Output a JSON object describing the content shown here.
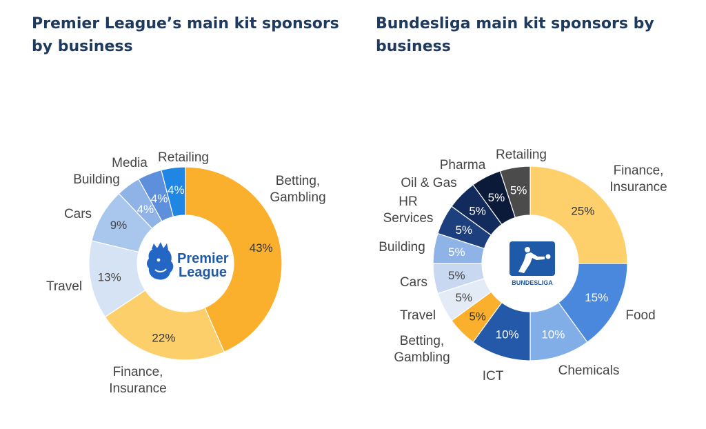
{
  "titles": {
    "premier_league": "Premier League’s main kit sponsors by business",
    "bundesliga": "Bundesliga main kit sponsors by business"
  },
  "logos": {
    "premier_league": {
      "line1": "Premier",
      "line2": "League",
      "icon": "lion-crest-icon"
    },
    "bundesliga": {
      "text": "BUNDESLIGA",
      "icon": "bundesliga-player-icon"
    }
  },
  "chart_data": [
    {
      "type": "pie",
      "style": "donut",
      "title": "Premier League’s main kit sponsors by business",
      "slices": [
        {
          "label": [
            "Betting,",
            "Gambling"
          ],
          "value": 43,
          "pct_label": "43%",
          "color": "#fbb02d",
          "text_color": "#333333"
        },
        {
          "label": [
            "Finance,",
            "Insurance"
          ],
          "value": 22,
          "pct_label": "22%",
          "color": "#fdcf6b",
          "text_color": "#333333"
        },
        {
          "label": [
            "Travel"
          ],
          "value": 13,
          "pct_label": "13%",
          "color": "#d6e3f5",
          "text_color": "#444444"
        },
        {
          "label": [
            "Cars"
          ],
          "value": 9,
          "pct_label": "9%",
          "color": "#a9c6ec",
          "text_color": "#444444"
        },
        {
          "label": [
            "Building"
          ],
          "value": 4,
          "pct_label": "4%",
          "color": "#8fb3e6",
          "text_color": "#ffffff"
        },
        {
          "label": [
            "Media"
          ],
          "value": 4,
          "pct_label": "4%",
          "color": "#5d8fdc",
          "text_color": "#ffffff"
        },
        {
          "label": [
            "Retailing"
          ],
          "value": 4,
          "pct_label": "4%",
          "color": "#1f86e3",
          "text_color": "#ffffff"
        }
      ]
    },
    {
      "type": "pie",
      "style": "donut",
      "title": "Bundesliga main kit sponsors by business",
      "slices": [
        {
          "label": [
            "Finance,",
            "Insurance"
          ],
          "value": 25,
          "pct_label": "25%",
          "color": "#fdd06c",
          "text_color": "#333333"
        },
        {
          "label": [
            "Food"
          ],
          "value": 15,
          "pct_label": "15%",
          "color": "#4a88de",
          "text_color": "#ffffff"
        },
        {
          "label": [
            "Chemicals"
          ],
          "value": 10,
          "pct_label": "10%",
          "color": "#82aee8",
          "text_color": "#ffffff"
        },
        {
          "label": [
            "ICT"
          ],
          "value": 10,
          "pct_label": "10%",
          "color": "#2459a9",
          "text_color": "#ffffff"
        },
        {
          "label": [
            "Betting,",
            "Gambling"
          ],
          "value": 5,
          "pct_label": "5%",
          "color": "#fbb02d",
          "text_color": "#333333"
        },
        {
          "label": [
            "Travel"
          ],
          "value": 5,
          "pct_label": "5%",
          "color": "#e3ebf7",
          "text_color": "#444444"
        },
        {
          "label": [
            "Cars"
          ],
          "value": 5,
          "pct_label": "5%",
          "color": "#c7d8f0",
          "text_color": "#444444"
        },
        {
          "label": [
            "Building"
          ],
          "value": 5,
          "pct_label": "5%",
          "color": "#8fb3e6",
          "text_color": "#ffffff"
        },
        {
          "label": [
            "HR",
            "Services"
          ],
          "value": 5,
          "pct_label": "5%",
          "color": "#1e3f7d",
          "text_color": "#ffffff"
        },
        {
          "label": [
            "Oil & Gas"
          ],
          "value": 5,
          "pct_label": "5%",
          "color": "#132b5c",
          "text_color": "#ffffff"
        },
        {
          "label": [
            "Pharma"
          ],
          "value": 5,
          "pct_label": "5%",
          "color": "#0c1a3a",
          "text_color": "#ffffff"
        },
        {
          "label": [
            "Retailing"
          ],
          "value": 5,
          "pct_label": "5%",
          "color": "#4b4b4b",
          "text_color": "#ffffff"
        }
      ]
    }
  ]
}
